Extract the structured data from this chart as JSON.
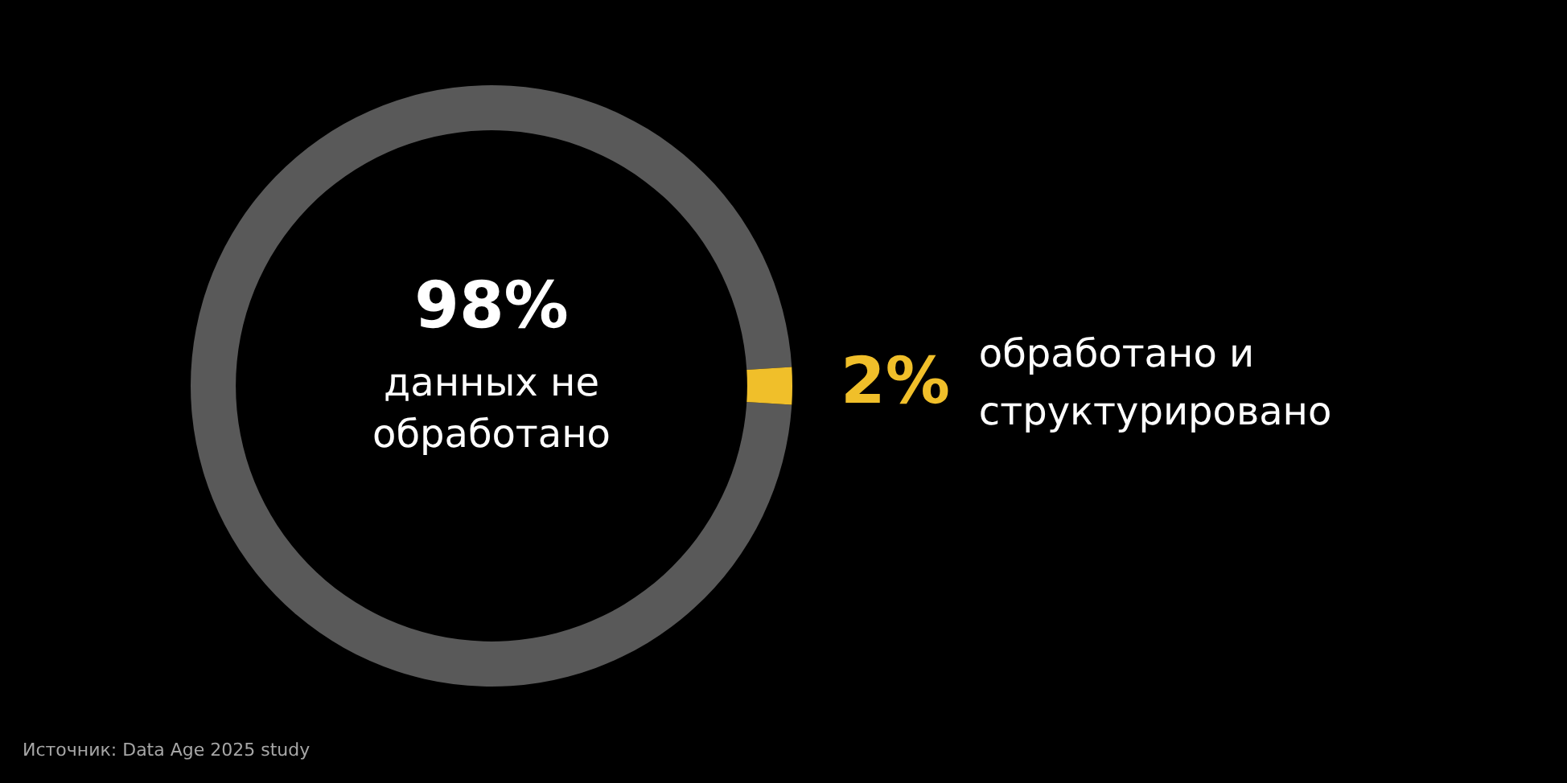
{
  "chart_data": {
    "type": "donut",
    "categories": [
      "данных не обработано",
      "обработано и структурировано"
    ],
    "values": [
      98,
      2
    ],
    "colors": [
      "#595959",
      "#f0bf2a"
    ],
    "value_labels": [
      "98%",
      "2%"
    ],
    "legend": false,
    "annotations": [
      "Источник: Data Age 2025 study"
    ]
  }
}
